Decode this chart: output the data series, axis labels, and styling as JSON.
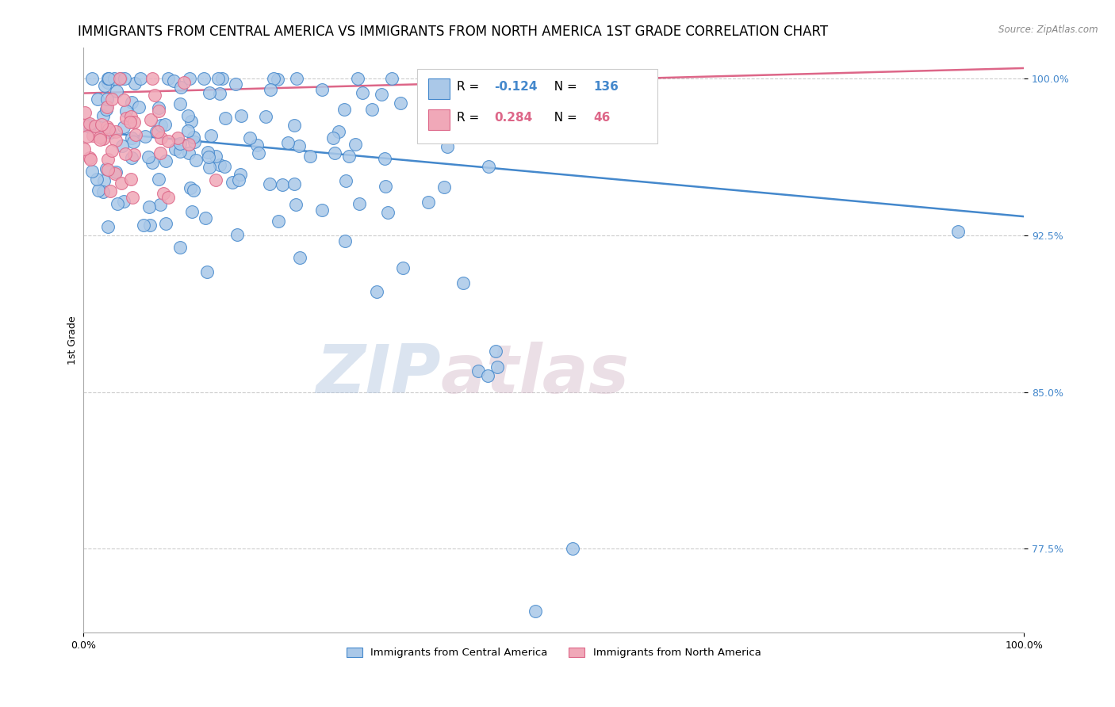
{
  "title": "IMMIGRANTS FROM CENTRAL AMERICA VS IMMIGRANTS FROM NORTH AMERICA 1ST GRADE CORRELATION CHART",
  "source": "Source: ZipAtlas.com",
  "ylabel": "1st Grade",
  "legend_label1": "Immigrants from Central America",
  "legend_label2": "Immigrants from North America",
  "R1": -0.124,
  "N1": 136,
  "R2": 0.284,
  "N2": 46,
  "color1": "#aac8e8",
  "color2": "#f0a8b8",
  "line_color1": "#4488cc",
  "line_color2": "#dd6688",
  "x_min": 0.0,
  "x_max": 1.0,
  "y_min": 0.735,
  "y_max": 1.015,
  "y_ticks": [
    0.775,
    0.85,
    0.925,
    1.0
  ],
  "y_tick_labels": [
    "77.5%",
    "85.0%",
    "92.5%",
    "100.0%"
  ],
  "x_tick_labels": [
    "0.0%",
    "100.0%"
  ],
  "watermark_zip": "ZIP",
  "watermark_atlas": "atlas",
  "background_color": "#ffffff",
  "title_fontsize": 12,
  "axis_label_fontsize": 9,
  "tick_fontsize": 9,
  "blue_line_y0": 0.975,
  "blue_line_y1": 0.934,
  "pink_line_y0": 0.993,
  "pink_line_y1": 1.005
}
